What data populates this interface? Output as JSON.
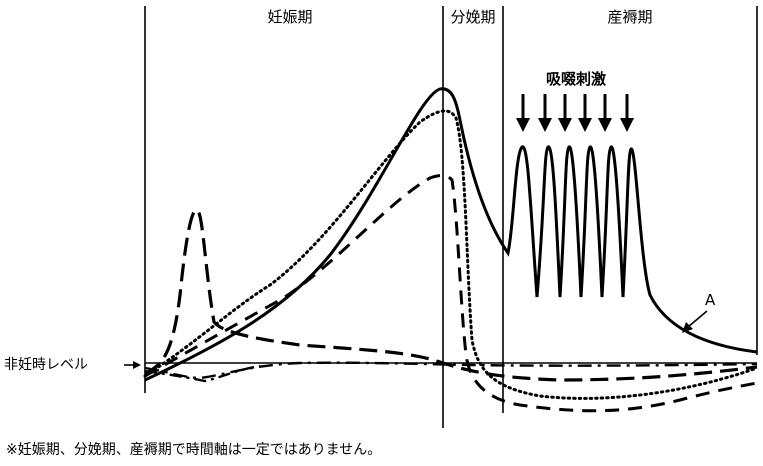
{
  "phases": {
    "pregnancy": "妊娠期",
    "delivery": "分娩期",
    "postpartum": "産褥期"
  },
  "baseline_label": "非妊時レベル",
  "suckling_label": "吸啜刺激",
  "curve_label": "A",
  "footnote": "※妊娠期、分娩期、産褥期で時間軸は一定ではありません。"
}
